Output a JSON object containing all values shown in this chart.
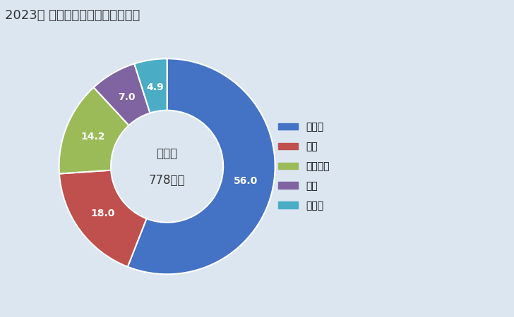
{
  "title": "2023年 輸出相手国のシェア（％）",
  "labels": [
    "トルコ",
    "中国",
    "ベトナム",
    "英国",
    "その他"
  ],
  "values": [
    56.0,
    18.0,
    14.2,
    7.0,
    4.9
  ],
  "colors": [
    "#4472C4",
    "#C0504D",
    "#9BBB59",
    "#8064A2",
    "#4BACC6"
  ],
  "center_line1": "総　額",
  "center_line2": "778万円",
  "background_color": "#DCE6F1",
  "title_fontsize": 13,
  "legend_fontsize": 10,
  "label_fontsize": 10
}
